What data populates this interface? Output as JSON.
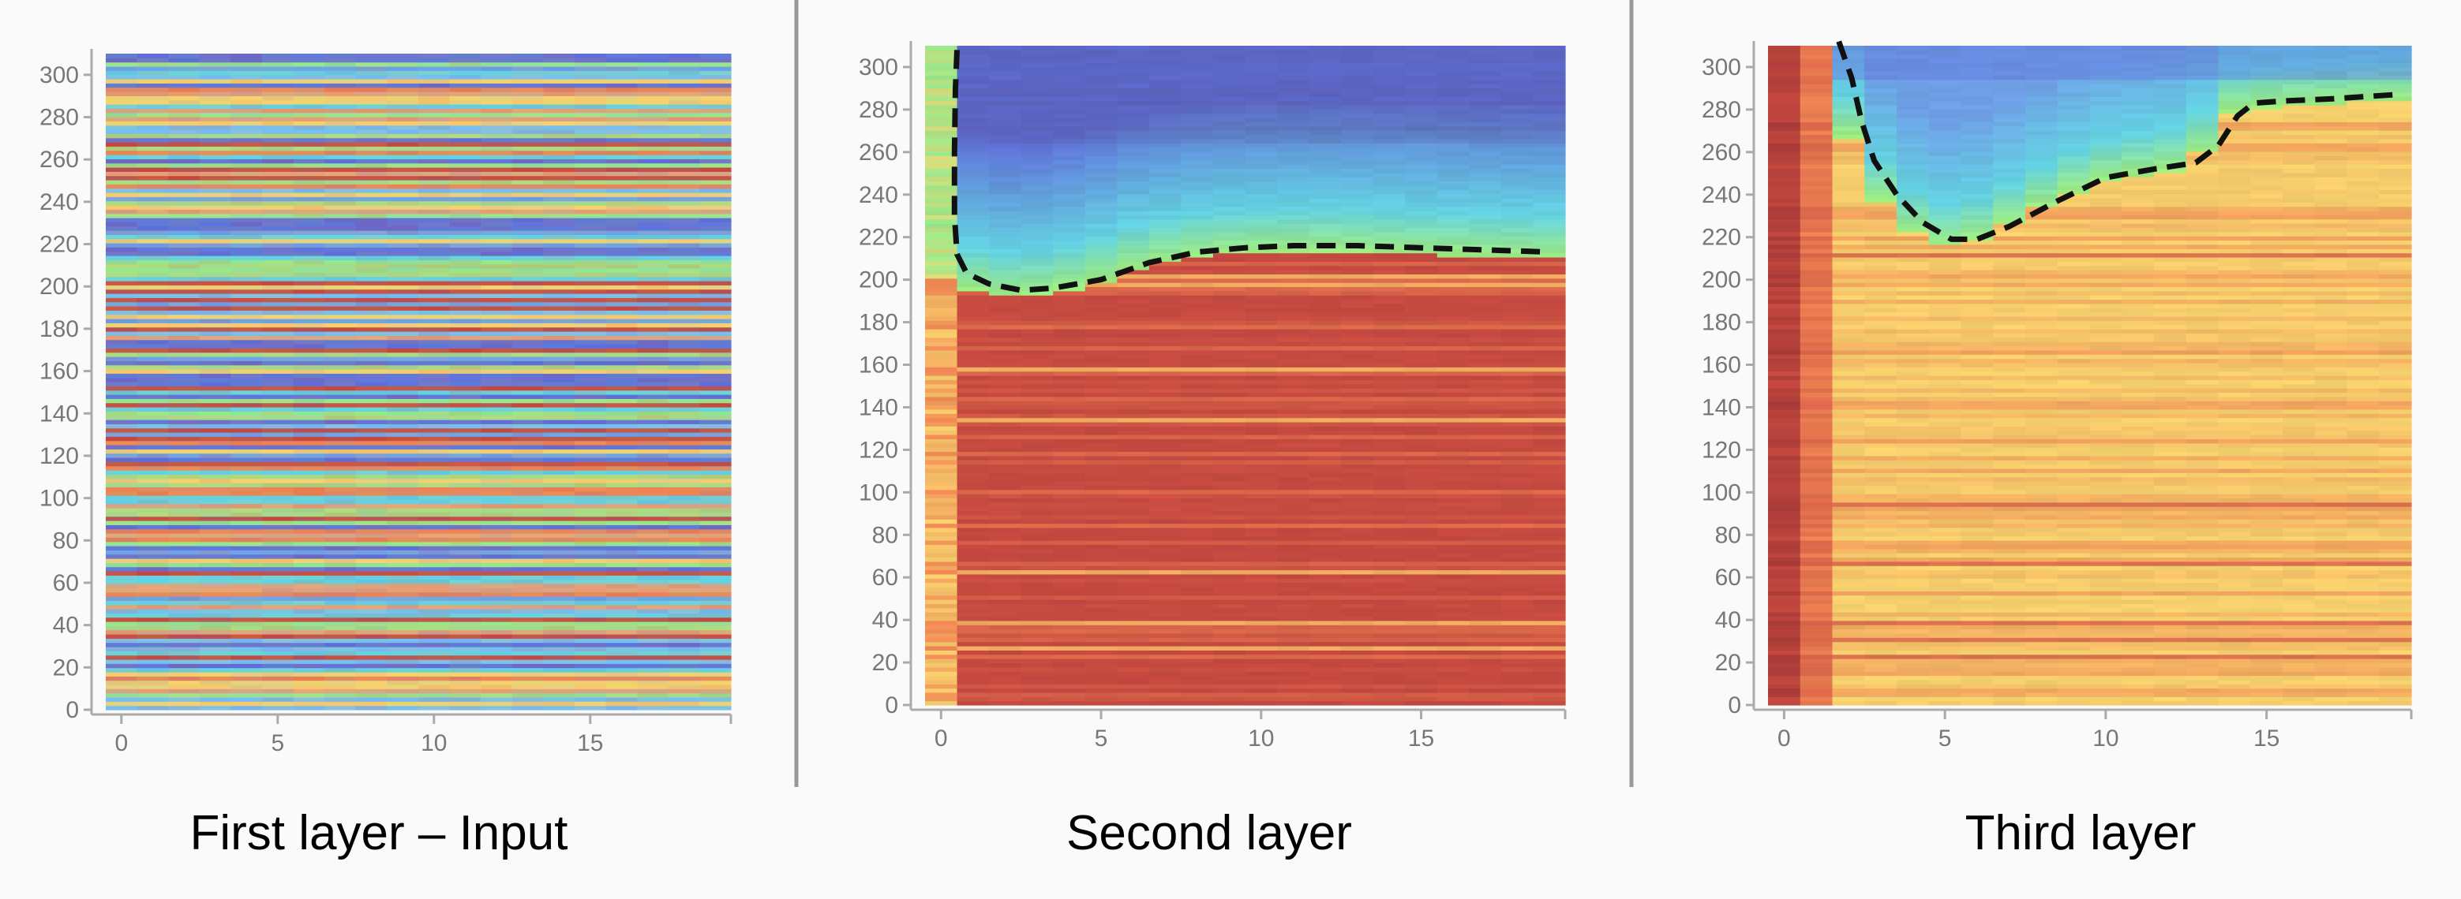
{
  "chart_data": [
    {
      "type": "heatmap",
      "title": "First layer – Input",
      "x_ticks": [
        0,
        5,
        10,
        15
      ],
      "y_ticks": [
        0,
        20,
        40,
        60,
        80,
        100,
        120,
        140,
        160,
        180,
        200,
        220,
        240,
        260,
        280,
        300
      ],
      "xlim": [
        0,
        19
      ],
      "ylim": [
        0,
        310
      ],
      "grid": false,
      "legend": "none",
      "pattern": "horizontal stripes of mixed colors across all columns",
      "boundary": []
    },
    {
      "type": "heatmap",
      "title": "Second layer",
      "x_ticks": [
        0,
        5,
        10,
        15
      ],
      "y_ticks": [
        0,
        20,
        40,
        60,
        80,
        100,
        120,
        140,
        160,
        180,
        200,
        220,
        240,
        260,
        280,
        300
      ],
      "xlim": [
        0,
        19
      ],
      "ylim": [
        0,
        310
      ],
      "grid": false,
      "legend": "none",
      "pattern": "red/orange below boundary, green to blue above boundary",
      "boundary": [
        {
          "x": 0.5,
          "y": 308
        },
        {
          "x": 0.45,
          "y": 290
        },
        {
          "x": 0.42,
          "y": 260
        },
        {
          "x": 0.42,
          "y": 230
        },
        {
          "x": 0.5,
          "y": 212
        },
        {
          "x": 0.8,
          "y": 203
        },
        {
          "x": 1.5,
          "y": 198
        },
        {
          "x": 2.5,
          "y": 195
        },
        {
          "x": 3.5,
          "y": 196
        },
        {
          "x": 5,
          "y": 200
        },
        {
          "x": 6.5,
          "y": 208
        },
        {
          "x": 8,
          "y": 213
        },
        {
          "x": 9.5,
          "y": 215
        },
        {
          "x": 11,
          "y": 216
        },
        {
          "x": 13,
          "y": 216
        },
        {
          "x": 15,
          "y": 215
        },
        {
          "x": 17,
          "y": 214
        },
        {
          "x": 19,
          "y": 213
        }
      ]
    },
    {
      "type": "heatmap",
      "title": "Third layer",
      "x_ticks": [
        0,
        5,
        10,
        15
      ],
      "y_ticks": [
        0,
        20,
        40,
        60,
        80,
        100,
        120,
        140,
        160,
        180,
        200,
        220,
        240,
        260,
        280,
        300
      ],
      "xlim": [
        0,
        19
      ],
      "ylim": [
        0,
        310
      ],
      "grid": false,
      "legend": "none",
      "pattern": "red in first columns, yellow/orange below boundary, green to blue above boundary",
      "boundary": [
        {
          "x": 1.7,
          "y": 312
        },
        {
          "x": 2.1,
          "y": 295
        },
        {
          "x": 2.4,
          "y": 275
        },
        {
          "x": 2.8,
          "y": 256
        },
        {
          "x": 3.5,
          "y": 240
        },
        {
          "x": 4.3,
          "y": 227
        },
        {
          "x": 5.2,
          "y": 219
        },
        {
          "x": 6,
          "y": 219
        },
        {
          "x": 7,
          "y": 225
        },
        {
          "x": 8.5,
          "y": 237
        },
        {
          "x": 10,
          "y": 248
        },
        {
          "x": 11.5,
          "y": 252
        },
        {
          "x": 12.8,
          "y": 255
        },
        {
          "x": 13.5,
          "y": 263
        },
        {
          "x": 14.1,
          "y": 277
        },
        {
          "x": 14.6,
          "y": 283
        },
        {
          "x": 15.5,
          "y": 284
        },
        {
          "x": 17,
          "y": 285
        },
        {
          "x": 19,
          "y": 287
        }
      ]
    }
  ]
}
